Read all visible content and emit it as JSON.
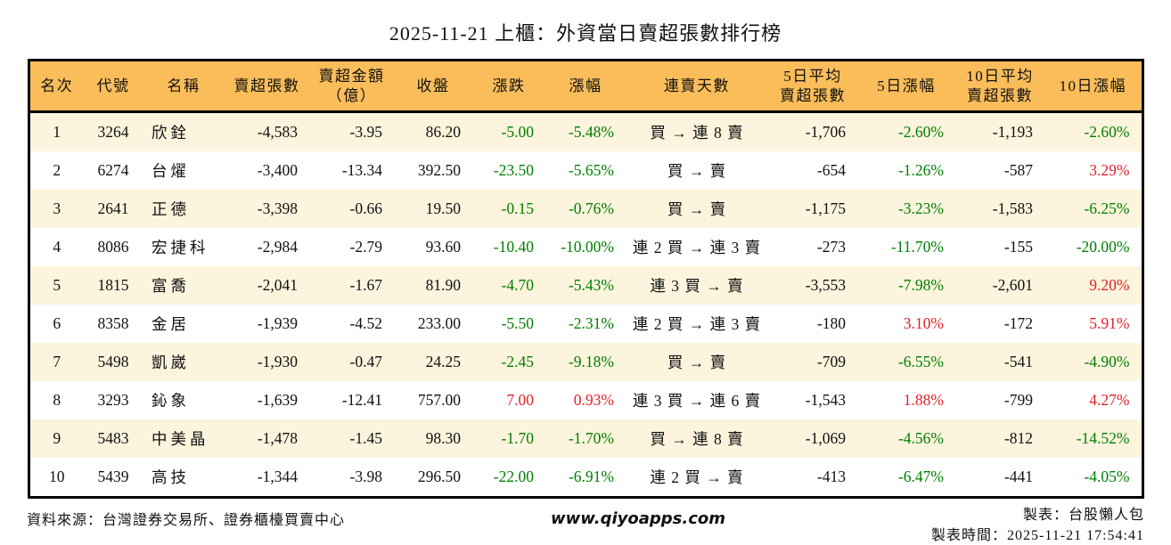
{
  "title": "2025-11-21 上櫃：外資當日賣超張數排行榜",
  "chart_data": {
    "type": "table",
    "title": "2025-11-21 上櫃：外資當日賣超張數排行榜",
    "columns": [
      "名次",
      "代號",
      "名稱",
      "賣超張數",
      "賣超金額\n（億）",
      "收盤",
      "漲跌",
      "漲幅",
      "連賣天數",
      "5日平均\n賣超張數",
      "5日漲幅",
      "10日平均\n賣超張數",
      "10日漲幅"
    ],
    "rows": [
      {
        "rank": "1",
        "code": "3264",
        "name": "欣銓",
        "net_sell": "-4,583",
        "amount": "-3.95",
        "close": "86.20",
        "change": "-5.00",
        "change_pct": "-5.48%",
        "streak": "買 → 連 8 賣",
        "avg5": "-1,706",
        "pct5": "-2.60%",
        "avg10": "-1,193",
        "pct10": "-2.60%"
      },
      {
        "rank": "2",
        "code": "6274",
        "name": "台燿",
        "net_sell": "-3,400",
        "amount": "-13.34",
        "close": "392.50",
        "change": "-23.50",
        "change_pct": "-5.65%",
        "streak": "買 → 賣",
        "avg5": "-654",
        "pct5": "-1.26%",
        "avg10": "-587",
        "pct10": "3.29%"
      },
      {
        "rank": "3",
        "code": "2641",
        "name": "正德",
        "net_sell": "-3,398",
        "amount": "-0.66",
        "close": "19.50",
        "change": "-0.15",
        "change_pct": "-0.76%",
        "streak": "買 → 賣",
        "avg5": "-1,175",
        "pct5": "-3.23%",
        "avg10": "-1,583",
        "pct10": "-6.25%"
      },
      {
        "rank": "4",
        "code": "8086",
        "name": "宏捷科",
        "net_sell": "-2,984",
        "amount": "-2.79",
        "close": "93.60",
        "change": "-10.40",
        "change_pct": "-10.00%",
        "streak": "連 2 買 → 連 3 賣",
        "avg5": "-273",
        "pct5": "-11.70%",
        "avg10": "-155",
        "pct10": "-20.00%"
      },
      {
        "rank": "5",
        "code": "1815",
        "name": "富喬",
        "net_sell": "-2,041",
        "amount": "-1.67",
        "close": "81.90",
        "change": "-4.70",
        "change_pct": "-5.43%",
        "streak": "連 3 買 → 賣",
        "avg5": "-3,553",
        "pct5": "-7.98%",
        "avg10": "-2,601",
        "pct10": "9.20%"
      },
      {
        "rank": "6",
        "code": "8358",
        "name": "金居",
        "net_sell": "-1,939",
        "amount": "-4.52",
        "close": "233.00",
        "change": "-5.50",
        "change_pct": "-2.31%",
        "streak": "連 2 買 → 連 3 賣",
        "avg5": "-180",
        "pct5": "3.10%",
        "avg10": "-172",
        "pct10": "5.91%"
      },
      {
        "rank": "7",
        "code": "5498",
        "name": "凱崴",
        "net_sell": "-1,930",
        "amount": "-0.47",
        "close": "24.25",
        "change": "-2.45",
        "change_pct": "-9.18%",
        "streak": "買 → 賣",
        "avg5": "-709",
        "pct5": "-6.55%",
        "avg10": "-541",
        "pct10": "-4.90%"
      },
      {
        "rank": "8",
        "code": "3293",
        "name": "鈊象",
        "net_sell": "-1,639",
        "amount": "-12.41",
        "close": "757.00",
        "change": "7.00",
        "change_pct": "0.93%",
        "streak": "連 3 買 → 連 6 賣",
        "avg5": "-1,543",
        "pct5": "1.88%",
        "avg10": "-799",
        "pct10": "4.27%"
      },
      {
        "rank": "9",
        "code": "5483",
        "name": "中美晶",
        "net_sell": "-1,478",
        "amount": "-1.45",
        "close": "98.30",
        "change": "-1.70",
        "change_pct": "-1.70%",
        "streak": "買 → 連 8 賣",
        "avg5": "-1,069",
        "pct5": "-4.56%",
        "avg10": "-812",
        "pct10": "-14.52%"
      },
      {
        "rank": "10",
        "code": "5439",
        "name": "高技",
        "net_sell": "-1,344",
        "amount": "-3.98",
        "close": "296.50",
        "change": "-22.00",
        "change_pct": "-6.91%",
        "streak": "連 2 買 → 賣",
        "avg5": "-413",
        "pct5": "-6.47%",
        "avg10": "-441",
        "pct10": "-4.05%"
      }
    ]
  },
  "footer": {
    "source": "資料來源：台灣證券交易所、證券櫃檯買賣中心",
    "website": "www.qiyoapps.com",
    "author": "製表：台股懶人包",
    "generated_at": "製表時間：2025-11-21 17:54:41"
  },
  "colors": {
    "rise": "#e61e28",
    "fall": "#008000",
    "header_bg": "#fabd5a",
    "row_alt": "#fcf4dd",
    "border": "#000000"
  }
}
